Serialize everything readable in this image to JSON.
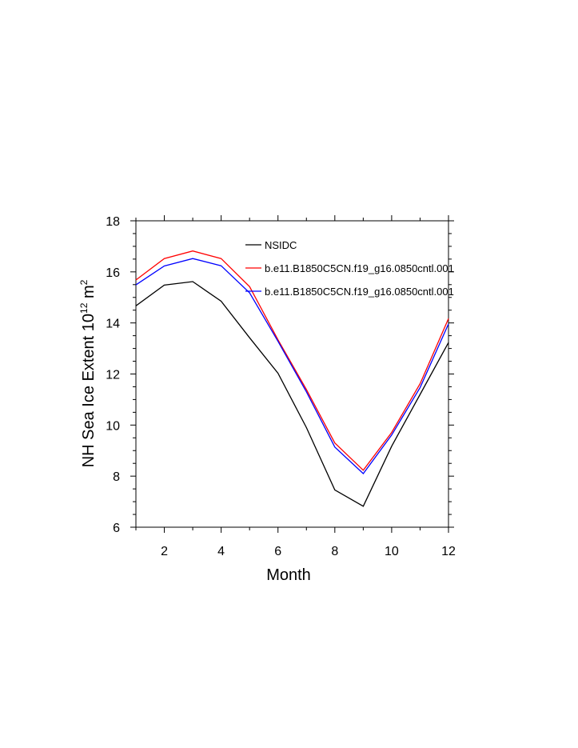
{
  "chart_data": {
    "type": "line",
    "xlabel": "Month",
    "ylabel": {
      "prefix": "NH Sea Ice Extent 10",
      "exp1": "12",
      "mid": " m",
      "exp2": "2"
    },
    "xlim": [
      1,
      12
    ],
    "ylim": [
      6,
      18
    ],
    "x_ticks": [
      2,
      4,
      6,
      8,
      10,
      12
    ],
    "y_ticks": [
      6,
      8,
      10,
      12,
      14,
      16,
      18
    ],
    "grid": false,
    "legend_placement": "top-right (inside)",
    "x": [
      1,
      2,
      3,
      4,
      5,
      6,
      7,
      8,
      9,
      10,
      11,
      12
    ],
    "series": [
      {
        "name": "NSIDC",
        "color": "#000000",
        "values": [
          14.67,
          15.48,
          15.62,
          14.85,
          13.42,
          12.03,
          9.9,
          7.46,
          6.82,
          9.17,
          11.2,
          13.23
        ]
      },
      {
        "name": "b.e11.B1850C5CN.f19_g16.0850cntl.001",
        "color": "#ff0000",
        "values": [
          15.68,
          16.52,
          16.82,
          16.52,
          15.42,
          13.34,
          11.39,
          9.3,
          8.23,
          9.71,
          11.62,
          14.17
        ]
      },
      {
        "name": "b.e11.B1850C5CN.f19_g16.0850cntl.001",
        "color": "#0000ff",
        "values": [
          15.49,
          16.23,
          16.52,
          16.24,
          15.18,
          13.28,
          11.3,
          9.14,
          8.1,
          9.61,
          11.47,
          13.96
        ]
      }
    ]
  }
}
